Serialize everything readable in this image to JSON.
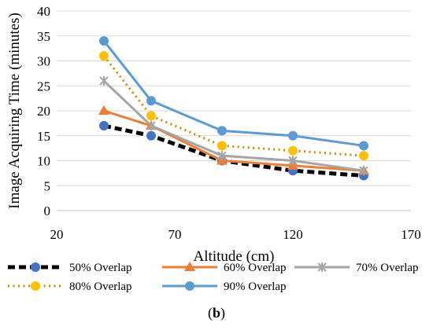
{
  "caption": {
    "open": "(",
    "letter": "b",
    "close": ")"
  },
  "chart_data": {
    "type": "line",
    "title": "",
    "xlabel": "Altitude (cm)",
    "ylabel": "Image Acquiring Time (minutes)",
    "xlim": [
      20,
      170
    ],
    "ylim": [
      0,
      40
    ],
    "xticks": [
      20,
      70,
      120,
      170
    ],
    "yticks": [
      0,
      5,
      10,
      15,
      20,
      25,
      30,
      35,
      40
    ],
    "grid": "horizontal",
    "legend_position": "bottom",
    "x": [
      40,
      60,
      90,
      120,
      150
    ],
    "series": [
      {
        "name": "50% Overlap",
        "values": [
          17,
          15,
          10,
          8,
          7
        ],
        "line_color": "#000000",
        "marker_color": "#4472C4",
        "marker": "circle",
        "dash": "dashed-thick"
      },
      {
        "name": "60% Overlap",
        "values": [
          20,
          17,
          10,
          9,
          8
        ],
        "line_color": "#ED7D31",
        "marker_color": "#ED7D31",
        "marker": "triangle",
        "dash": "solid"
      },
      {
        "name": "70% Overlap",
        "values": [
          26,
          17,
          11,
          10,
          8
        ],
        "line_color": "#A5A5A5",
        "marker_color": "#A5A5A5",
        "marker": "star",
        "dash": "solid"
      },
      {
        "name": "80% Overlap",
        "values": [
          31,
          19,
          13,
          12,
          11
        ],
        "line_color": "#BF9000",
        "marker_color": "#FFC000",
        "marker": "circle",
        "dash": "dotted"
      },
      {
        "name": "90% Overlap",
        "values": [
          34,
          22,
          16,
          15,
          13
        ],
        "line_color": "#5B9BD5",
        "marker_color": "#5B9BD5",
        "marker": "circle",
        "dash": "solid"
      }
    ]
  }
}
